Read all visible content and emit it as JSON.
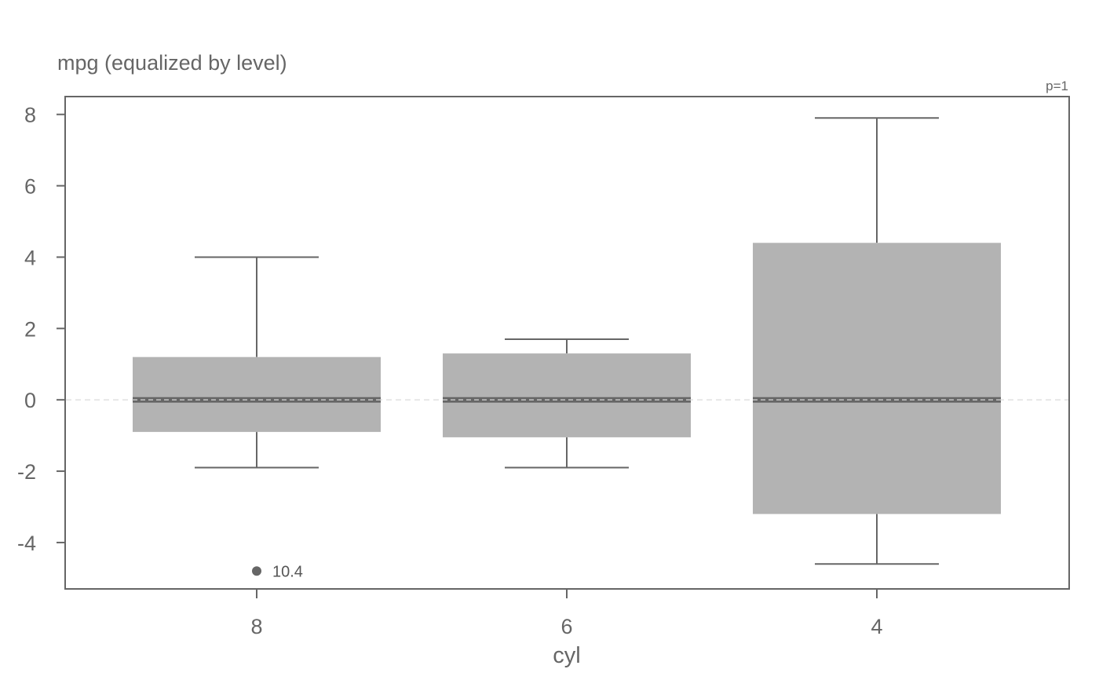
{
  "chart_data": {
    "type": "box",
    "title": "mpg (equalized by level)",
    "xlabel": "cyl",
    "ylabel": "",
    "annotation": "p=1",
    "ylim": [
      -5.3,
      8.5
    ],
    "yticks": [
      8,
      6,
      4,
      2,
      0,
      -2,
      -4
    ],
    "ytick_labels": [
      "8",
      "6",
      "4",
      "2",
      "0",
      "-2",
      "-4"
    ],
    "grid": false,
    "reference_line": 0,
    "categories": [
      "8",
      "6",
      "4"
    ],
    "boxes": [
      {
        "category": "8",
        "whisker_low": -1.9,
        "q1": -0.9,
        "median": 0,
        "q3": 1.2,
        "whisker_high": 4.0
      },
      {
        "category": "6",
        "whisker_low": -1.9,
        "q1": -1.05,
        "median": 0,
        "q3": 1.3,
        "whisker_high": 1.7
      },
      {
        "category": "4",
        "whisker_low": -4.6,
        "q1": -3.2,
        "median": 0,
        "q3": 4.4,
        "whisker_high": 7.9
      }
    ],
    "outliers": [
      {
        "category": "8",
        "y": -4.8,
        "label": "10.4"
      }
    ],
    "colors": {
      "box": "#b3b3b3",
      "line": "#666666",
      "median": "#666666",
      "reference": "#e0e0e0"
    }
  }
}
